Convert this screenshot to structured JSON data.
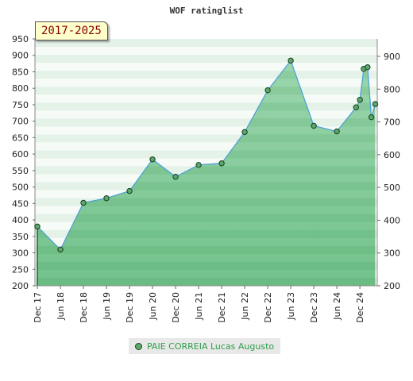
{
  "chart_data": {
    "type": "area",
    "title": "WOF ratinglist",
    "period_badge": "2017-2025",
    "left_ylim": [
      200,
      950
    ],
    "left_ticks": [
      "950",
      "900",
      "850",
      "800",
      "750",
      "700",
      "650",
      "600",
      "550",
      "500",
      "450",
      "400",
      "350",
      "300",
      "250",
      "200"
    ],
    "right_ticks": [
      "900",
      "800",
      "700",
      "600",
      "500",
      "400",
      "300",
      "200"
    ],
    "x_tick_labels": [
      "Dec 17",
      "Jun 18",
      "Dec 18",
      "Jun 19",
      "Dec 19",
      "Jun 20",
      "Dec 20",
      "Jun 21",
      "Dec 21",
      "Jun 22",
      "Dec 22",
      "Jun 23",
      "Dec 23",
      "Jun 24",
      "Dec 24"
    ],
    "series": [
      {
        "name": "PAIE CORREIA Lucas Augusto",
        "color": "#4a9fd8",
        "fill": "#5bb878",
        "points": [
          {
            "x": "2017-12",
            "y": 380
          },
          {
            "x": "2018-06",
            "y": 310
          },
          {
            "x": "2018-12",
            "y": 452
          },
          {
            "x": "2019-06",
            "y": 466
          },
          {
            "x": "2019-12",
            "y": 488
          },
          {
            "x": "2020-06",
            "y": 584
          },
          {
            "x": "2020-12",
            "y": 531
          },
          {
            "x": "2021-06",
            "y": 567
          },
          {
            "x": "2021-12",
            "y": 572
          },
          {
            "x": "2022-06",
            "y": 667
          },
          {
            "x": "2022-12",
            "y": 794
          },
          {
            "x": "2023-06",
            "y": 884
          },
          {
            "x": "2023-12",
            "y": 686
          },
          {
            "x": "2024-06",
            "y": 669
          },
          {
            "x": "2024-11",
            "y": 742
          },
          {
            "x": "2024-12",
            "y": 765
          },
          {
            "x": "2025-01",
            "y": 859
          },
          {
            "x": "2025-02",
            "y": 864
          },
          {
            "x": "2025-03",
            "y": 712
          },
          {
            "x": "2025-04",
            "y": 752
          }
        ]
      }
    ],
    "legend_position": "bottom-center",
    "grid": true
  }
}
